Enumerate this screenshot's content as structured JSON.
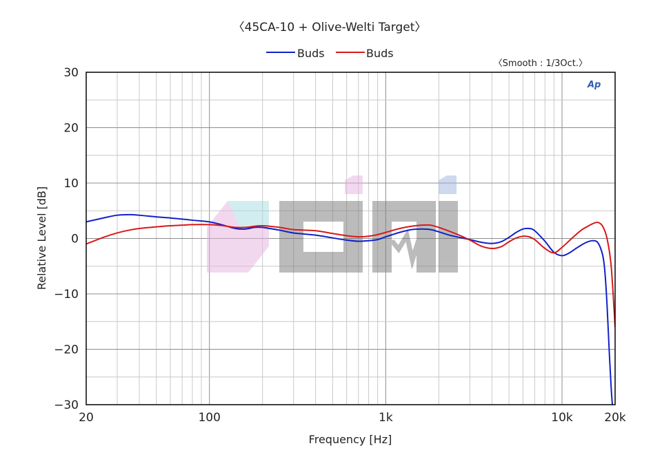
{
  "chart_data": {
    "type": "line",
    "title": "〈45CA-10 + Olive-Welti Target〉",
    "smoothing_note": "〈Smooth : 1/3Oct.〉",
    "watermark": "Ap",
    "xlabel": "Frequency [Hz]",
    "ylabel": "Relative Level [dB]",
    "x_scale": "log",
    "xlim": [
      20,
      20000
    ],
    "ylim": [
      -30,
      30
    ],
    "grid": true,
    "legend_position": "top-center",
    "x_tick_labels": [
      {
        "value": 20,
        "label": "20"
      },
      {
        "value": 100,
        "label": "100"
      },
      {
        "value": 1000,
        "label": "1k"
      },
      {
        "value": 10000,
        "label": "10k"
      },
      {
        "value": 20000,
        "label": "20k"
      }
    ],
    "y_ticks": [
      30,
      20,
      10,
      0,
      -10,
      -20,
      -30
    ],
    "y_tick_labels": [
      "30",
      "20",
      "10",
      "0",
      "−10",
      "−20",
      "−30"
    ],
    "series": [
      {
        "name": "Buds",
        "color": "#1020c8",
        "points": [
          [
            20,
            3.0
          ],
          [
            25,
            3.7
          ],
          [
            30,
            4.2
          ],
          [
            35,
            4.3
          ],
          [
            40,
            4.2
          ],
          [
            50,
            3.9
          ],
          [
            60,
            3.7
          ],
          [
            70,
            3.5
          ],
          [
            80,
            3.3
          ],
          [
            100,
            3.0
          ],
          [
            120,
            2.4
          ],
          [
            140,
            1.8
          ],
          [
            160,
            1.7
          ],
          [
            180,
            2.0
          ],
          [
            200,
            2.0
          ],
          [
            250,
            1.5
          ],
          [
            300,
            1.0
          ],
          [
            400,
            0.6
          ],
          [
            500,
            0.1
          ],
          [
            600,
            -0.3
          ],
          [
            700,
            -0.5
          ],
          [
            800,
            -0.4
          ],
          [
            900,
            -0.2
          ],
          [
            1000,
            0.3
          ],
          [
            1200,
            1.1
          ],
          [
            1400,
            1.6
          ],
          [
            1600,
            1.7
          ],
          [
            1800,
            1.6
          ],
          [
            2000,
            1.2
          ],
          [
            2300,
            0.6
          ],
          [
            2700,
            0.1
          ],
          [
            3000,
            -0.2
          ],
          [
            3500,
            -0.7
          ],
          [
            4000,
            -0.9
          ],
          [
            4500,
            -0.6
          ],
          [
            5000,
            0.2
          ],
          [
            5500,
            1.1
          ],
          [
            6000,
            1.7
          ],
          [
            6500,
            1.8
          ],
          [
            7000,
            1.4
          ],
          [
            8000,
            -0.5
          ],
          [
            9000,
            -2.5
          ],
          [
            10000,
            -3.1
          ],
          [
            11000,
            -2.6
          ],
          [
            12000,
            -1.8
          ],
          [
            13000,
            -1.1
          ],
          [
            14000,
            -0.6
          ],
          [
            15000,
            -0.4
          ],
          [
            16000,
            -0.8
          ],
          [
            17000,
            -3.0
          ],
          [
            17500,
            -6.0
          ],
          [
            18000,
            -12.0
          ],
          [
            18500,
            -20.0
          ],
          [
            19000,
            -27.0
          ],
          [
            19300,
            -30.0
          ]
        ]
      },
      {
        "name": "Buds",
        "color": "#d81818",
        "points": [
          [
            20,
            -1.0
          ],
          [
            25,
            0.2
          ],
          [
            30,
            1.0
          ],
          [
            35,
            1.5
          ],
          [
            40,
            1.8
          ],
          [
            50,
            2.1
          ],
          [
            60,
            2.3
          ],
          [
            70,
            2.4
          ],
          [
            80,
            2.5
          ],
          [
            100,
            2.5
          ],
          [
            120,
            2.3
          ],
          [
            140,
            2.0
          ],
          [
            160,
            2.0
          ],
          [
            180,
            2.2
          ],
          [
            200,
            2.3
          ],
          [
            250,
            2.0
          ],
          [
            300,
            1.6
          ],
          [
            400,
            1.4
          ],
          [
            500,
            0.9
          ],
          [
            600,
            0.5
          ],
          [
            700,
            0.3
          ],
          [
            800,
            0.4
          ],
          [
            900,
            0.7
          ],
          [
            1000,
            1.1
          ],
          [
            1200,
            1.8
          ],
          [
            1400,
            2.2
          ],
          [
            1600,
            2.4
          ],
          [
            1800,
            2.4
          ],
          [
            2000,
            2.0
          ],
          [
            2300,
            1.3
          ],
          [
            2700,
            0.4
          ],
          [
            3000,
            -0.3
          ],
          [
            3500,
            -1.4
          ],
          [
            4000,
            -1.8
          ],
          [
            4500,
            -1.5
          ],
          [
            5000,
            -0.6
          ],
          [
            5500,
            0.1
          ],
          [
            6000,
            0.4
          ],
          [
            6500,
            0.3
          ],
          [
            7000,
            -0.2
          ],
          [
            8000,
            -1.8
          ],
          [
            9000,
            -2.6
          ],
          [
            10000,
            -1.6
          ],
          [
            11000,
            -0.4
          ],
          [
            12000,
            0.7
          ],
          [
            13000,
            1.6
          ],
          [
            14000,
            2.2
          ],
          [
            15000,
            2.7
          ],
          [
            16000,
            2.9
          ],
          [
            17000,
            2.2
          ],
          [
            18000,
            0.0
          ],
          [
            19000,
            -5.0
          ],
          [
            20000,
            -16.0
          ]
        ]
      }
    ]
  }
}
